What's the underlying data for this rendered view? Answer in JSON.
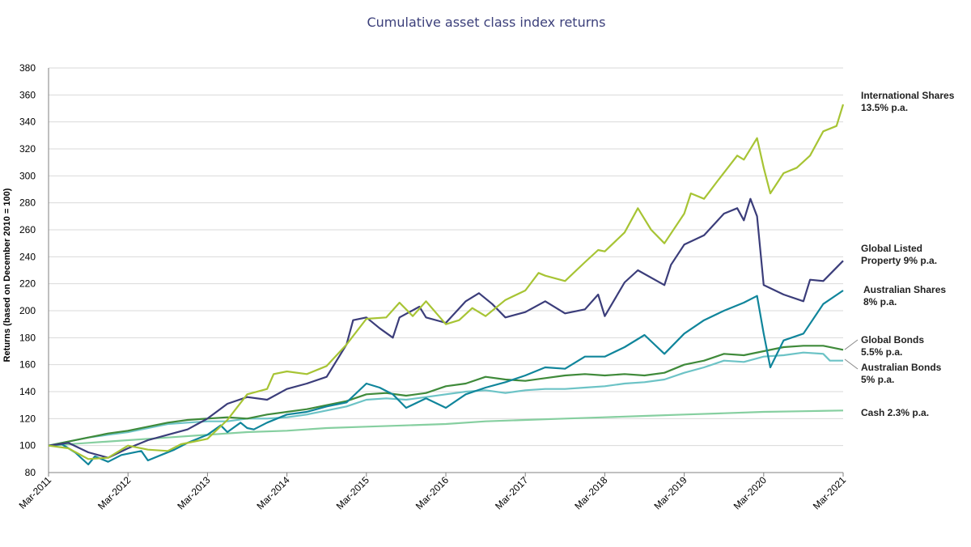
{
  "chart_data": {
    "type": "line",
    "title": "Cumulative asset class index returns",
    "xlabel": "",
    "ylabel": "Returns (based on December 2010 = 100)",
    "ylim": [
      80,
      380
    ],
    "yticks": [
      80,
      100,
      120,
      140,
      160,
      180,
      200,
      220,
      240,
      260,
      280,
      300,
      320,
      340,
      360,
      380
    ],
    "xlim": [
      "2011-03",
      "2021-03"
    ],
    "xticks": [
      "Mar-2011",
      "Mar-2012",
      "Mar-2013",
      "Mar-2014",
      "Mar-2015",
      "Mar-2016",
      "Mar-2017",
      "Mar-2018",
      "Mar-2019",
      "Mar-2020",
      "Mar-2021"
    ],
    "grid": "horizontal",
    "legend": "right (direct labels)",
    "series": [
      {
        "name": "Cash 2.3% p.a.",
        "label_lines": [
          "Cash 2.3% p.a."
        ],
        "color": "#86cfa0",
        "points": [
          [
            "2011-03",
            100
          ],
          [
            "2011-09",
            102
          ],
          [
            "2012-03",
            104
          ],
          [
            "2012-09",
            106
          ],
          [
            "2013-03",
            108
          ],
          [
            "2013-09",
            110
          ],
          [
            "2014-03",
            111
          ],
          [
            "2014-09",
            113
          ],
          [
            "2015-03",
            114
          ],
          [
            "2015-09",
            115
          ],
          [
            "2016-03",
            116
          ],
          [
            "2016-09",
            118
          ],
          [
            "2017-03",
            119
          ],
          [
            "2017-09",
            120
          ],
          [
            "2018-03",
            121
          ],
          [
            "2018-09",
            122
          ],
          [
            "2019-03",
            123
          ],
          [
            "2019-09",
            124
          ],
          [
            "2020-03",
            125
          ],
          [
            "2020-09",
            125.5
          ],
          [
            "2021-03",
            126
          ]
        ]
      },
      {
        "name": "Australian Bonds 5% p.a.",
        "label_lines": [
          "Australian Bonds",
          "5% p.a."
        ],
        "color": "#6cc3c6",
        "points": [
          [
            "2011-03",
            100
          ],
          [
            "2011-06",
            103
          ],
          [
            "2011-09",
            106
          ],
          [
            "2011-12",
            108
          ],
          [
            "2012-03",
            110
          ],
          [
            "2012-06",
            113
          ],
          [
            "2012-09",
            116
          ],
          [
            "2012-12",
            117
          ],
          [
            "2013-03",
            118
          ],
          [
            "2013-06",
            118
          ],
          [
            "2013-09",
            120
          ],
          [
            "2013-12",
            120
          ],
          [
            "2014-03",
            121
          ],
          [
            "2014-06",
            123
          ],
          [
            "2014-09",
            126
          ],
          [
            "2014-12",
            129
          ],
          [
            "2015-03",
            134
          ],
          [
            "2015-06",
            135
          ],
          [
            "2015-09",
            134
          ],
          [
            "2015-12",
            136
          ],
          [
            "2016-03",
            138
          ],
          [
            "2016-06",
            140
          ],
          [
            "2016-09",
            141
          ],
          [
            "2016-12",
            139
          ],
          [
            "2017-03",
            141
          ],
          [
            "2017-06",
            142
          ],
          [
            "2017-09",
            142
          ],
          [
            "2017-12",
            143
          ],
          [
            "2018-03",
            144
          ],
          [
            "2018-06",
            146
          ],
          [
            "2018-09",
            147
          ],
          [
            "2018-12",
            149
          ],
          [
            "2019-03",
            154
          ],
          [
            "2019-06",
            158
          ],
          [
            "2019-09",
            163
          ],
          [
            "2019-12",
            162
          ],
          [
            "2020-03",
            166
          ],
          [
            "2020-06",
            167
          ],
          [
            "2020-09",
            169
          ],
          [
            "2020-12",
            168
          ],
          [
            "2021-01",
            163
          ],
          [
            "2021-03",
            163
          ]
        ]
      },
      {
        "name": "Global Bonds 5.5% p.a.",
        "label_lines": [
          "Global Bonds",
          "5.5% p.a."
        ],
        "color": "#3f8a3a",
        "points": [
          [
            "2011-03",
            100
          ],
          [
            "2011-06",
            103
          ],
          [
            "2011-09",
            106
          ],
          [
            "2011-12",
            109
          ],
          [
            "2012-03",
            111
          ],
          [
            "2012-06",
            114
          ],
          [
            "2012-09",
            117
          ],
          [
            "2012-12",
            119
          ],
          [
            "2013-03",
            120
          ],
          [
            "2013-06",
            121
          ],
          [
            "2013-09",
            120
          ],
          [
            "2013-12",
            123
          ],
          [
            "2014-03",
            125
          ],
          [
            "2014-06",
            127
          ],
          [
            "2014-09",
            130
          ],
          [
            "2014-12",
            133
          ],
          [
            "2015-03",
            138
          ],
          [
            "2015-06",
            139
          ],
          [
            "2015-09",
            137
          ],
          [
            "2015-12",
            139
          ],
          [
            "2016-03",
            144
          ],
          [
            "2016-06",
            146
          ],
          [
            "2016-09",
            151
          ],
          [
            "2016-12",
            149
          ],
          [
            "2017-03",
            148
          ],
          [
            "2017-06",
            150
          ],
          [
            "2017-09",
            152
          ],
          [
            "2017-12",
            153
          ],
          [
            "2018-03",
            152
          ],
          [
            "2018-06",
            153
          ],
          [
            "2018-09",
            152
          ],
          [
            "2018-12",
            154
          ],
          [
            "2019-03",
            160
          ],
          [
            "2019-06",
            163
          ],
          [
            "2019-09",
            168
          ],
          [
            "2019-12",
            167
          ],
          [
            "2020-03",
            170
          ],
          [
            "2020-06",
            173
          ],
          [
            "2020-09",
            174
          ],
          [
            "2020-12",
            174
          ],
          [
            "2021-03",
            171
          ]
        ]
      },
      {
        "name": "Australian Shares 8% p.a.",
        "label_lines": [
          "Australian Shares",
          "8% p.a."
        ],
        "color": "#10859b",
        "points": [
          [
            "2011-03",
            100
          ],
          [
            "2011-05",
            101
          ],
          [
            "2011-07",
            95
          ],
          [
            "2011-09",
            86
          ],
          [
            "2011-10",
            92
          ],
          [
            "2011-12",
            88
          ],
          [
            "2012-02",
            93
          ],
          [
            "2012-05",
            96
          ],
          [
            "2012-06",
            89
          ],
          [
            "2012-08",
            93
          ],
          [
            "2012-10",
            97
          ],
          [
            "2012-12",
            102
          ],
          [
            "2013-03",
            108
          ],
          [
            "2013-05",
            115
          ],
          [
            "2013-06",
            110
          ],
          [
            "2013-08",
            117
          ],
          [
            "2013-09",
            113
          ],
          [
            "2013-10",
            112
          ],
          [
            "2013-12",
            117
          ],
          [
            "2014-03",
            123
          ],
          [
            "2014-06",
            125
          ],
          [
            "2014-09",
            129
          ],
          [
            "2014-12",
            132
          ],
          [
            "2015-03",
            146
          ],
          [
            "2015-05",
            143
          ],
          [
            "2015-07",
            138
          ],
          [
            "2015-09",
            128
          ],
          [
            "2015-12",
            135
          ],
          [
            "2016-03",
            128
          ],
          [
            "2016-06",
            138
          ],
          [
            "2016-09",
            143
          ],
          [
            "2016-12",
            147
          ],
          [
            "2017-03",
            152
          ],
          [
            "2017-06",
            158
          ],
          [
            "2017-09",
            157
          ],
          [
            "2017-12",
            166
          ],
          [
            "2018-03",
            166
          ],
          [
            "2018-06",
            173
          ],
          [
            "2018-09",
            182
          ],
          [
            "2018-12",
            168
          ],
          [
            "2019-03",
            183
          ],
          [
            "2019-06",
            193
          ],
          [
            "2019-09",
            200
          ],
          [
            "2019-12",
            206
          ],
          [
            "2020-02",
            211
          ],
          [
            "2020-03",
            183
          ],
          [
            "2020-04",
            158
          ],
          [
            "2020-06",
            178
          ],
          [
            "2020-09",
            183
          ],
          [
            "2020-12",
            205
          ],
          [
            "2021-03",
            215
          ]
        ]
      },
      {
        "name": "Global Listed Property 9% p.a.",
        "label_lines": [
          "Global Listed",
          "Property 9% p.a."
        ],
        "color": "#3b3d7a",
        "points": [
          [
            "2011-03",
            100
          ],
          [
            "2011-06",
            102
          ],
          [
            "2011-09",
            95
          ],
          [
            "2011-12",
            91
          ],
          [
            "2012-03",
            98
          ],
          [
            "2012-06",
            104
          ],
          [
            "2012-09",
            108
          ],
          [
            "2012-12",
            112
          ],
          [
            "2013-03",
            120
          ],
          [
            "2013-06",
            131
          ],
          [
            "2013-09",
            136
          ],
          [
            "2013-12",
            134
          ],
          [
            "2014-03",
            142
          ],
          [
            "2014-06",
            146
          ],
          [
            "2014-09",
            151
          ],
          [
            "2014-12",
            175
          ],
          [
            "2015-01",
            193
          ],
          [
            "2015-03",
            195
          ],
          [
            "2015-05",
            187
          ],
          [
            "2015-07",
            180
          ],
          [
            "2015-08",
            195
          ],
          [
            "2015-11",
            203
          ],
          [
            "2015-12",
            195
          ],
          [
            "2016-03",
            191
          ],
          [
            "2016-06",
            207
          ],
          [
            "2016-08",
            213
          ],
          [
            "2016-10",
            205
          ],
          [
            "2016-12",
            195
          ],
          [
            "2017-03",
            199
          ],
          [
            "2017-06",
            207
          ],
          [
            "2017-09",
            198
          ],
          [
            "2017-12",
            201
          ],
          [
            "2018-02",
            212
          ],
          [
            "2018-03",
            196
          ],
          [
            "2018-06",
            221
          ],
          [
            "2018-08",
            230
          ],
          [
            "2018-12",
            219
          ],
          [
            "2019-01",
            234
          ],
          [
            "2019-03",
            249
          ],
          [
            "2019-06",
            256
          ],
          [
            "2019-09",
            272
          ],
          [
            "2019-11",
            276
          ],
          [
            "2019-12",
            267
          ],
          [
            "2020-01",
            283
          ],
          [
            "2020-02",
            270
          ],
          [
            "2020-03",
            219
          ],
          [
            "2020-06",
            212
          ],
          [
            "2020-09",
            207
          ],
          [
            "2020-10",
            223
          ],
          [
            "2020-12",
            222
          ],
          [
            "2021-03",
            237
          ]
        ]
      },
      {
        "name": "International Shares 13.5% p.a.",
        "label_lines": [
          "International Shares",
          "13.5% p.a."
        ],
        "color": "#a7c434",
        "points": [
          [
            "2011-03",
            100
          ],
          [
            "2011-06",
            98
          ],
          [
            "2011-09",
            90
          ],
          [
            "2011-12",
            91
          ],
          [
            "2012-03",
            100
          ],
          [
            "2012-06",
            97
          ],
          [
            "2012-09",
            96
          ],
          [
            "2012-11",
            101
          ],
          [
            "2013-03",
            105
          ],
          [
            "2013-06",
            119
          ],
          [
            "2013-09",
            138
          ],
          [
            "2013-12",
            142
          ],
          [
            "2014-01",
            153
          ],
          [
            "2014-03",
            155
          ],
          [
            "2014-06",
            153
          ],
          [
            "2014-09",
            159
          ],
          [
            "2014-12",
            175
          ],
          [
            "2015-03",
            194
          ],
          [
            "2015-06",
            195
          ],
          [
            "2015-08",
            206
          ],
          [
            "2015-10",
            196
          ],
          [
            "2015-12",
            207
          ],
          [
            "2016-03",
            190
          ],
          [
            "2016-05",
            193
          ],
          [
            "2016-07",
            202
          ],
          [
            "2016-09",
            196
          ],
          [
            "2016-12",
            208
          ],
          [
            "2017-03",
            215
          ],
          [
            "2017-05",
            228
          ],
          [
            "2017-06",
            226
          ],
          [
            "2017-09",
            222
          ],
          [
            "2017-12",
            236
          ],
          [
            "2018-02",
            245
          ],
          [
            "2018-03",
            244
          ],
          [
            "2018-06",
            258
          ],
          [
            "2018-08",
            276
          ],
          [
            "2018-10",
            260
          ],
          [
            "2018-12",
            250
          ],
          [
            "2019-03",
            272
          ],
          [
            "2019-04",
            287
          ],
          [
            "2019-06",
            283
          ],
          [
            "2019-08",
            296
          ],
          [
            "2019-11",
            315
          ],
          [
            "2019-12",
            312
          ],
          [
            "2020-02",
            328
          ],
          [
            "2020-03",
            306
          ],
          [
            "2020-04",
            287
          ],
          [
            "2020-06",
            302
          ],
          [
            "2020-08",
            306
          ],
          [
            "2020-10",
            315
          ],
          [
            "2020-12",
            333
          ],
          [
            "2021-02",
            337
          ],
          [
            "2021-03",
            353
          ]
        ]
      }
    ]
  }
}
